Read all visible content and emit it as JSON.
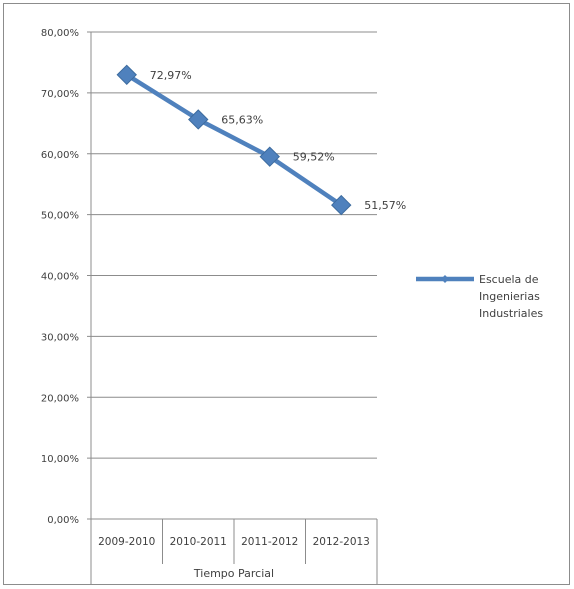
{
  "chart_data": {
    "type": "line",
    "title": "",
    "xlabel": "Tiempo Parcial",
    "ylabel": "",
    "categories": [
      "2009-2010",
      "2010-2011",
      "2011-2012",
      "2012-2013"
    ],
    "series": [
      {
        "name": "Escuela de Ingenierias Industriales",
        "values": [
          72.97,
          65.63,
          59.52,
          51.57
        ],
        "data_labels": [
          "72,97%",
          "65,63%",
          "59,52%",
          "51,57%"
        ],
        "color": "#4f81bd"
      }
    ],
    "ylim": [
      0,
      80
    ],
    "y_ticks": [
      "0,00%",
      "10,00%",
      "20,00%",
      "30,00%",
      "40,00%",
      "50,00%",
      "60,00%",
      "70,00%",
      "80,00%"
    ],
    "grid": true,
    "legend": {
      "position": "right",
      "lines": [
        "Escuela de",
        "Ingenierias",
        "Industriales"
      ]
    }
  }
}
